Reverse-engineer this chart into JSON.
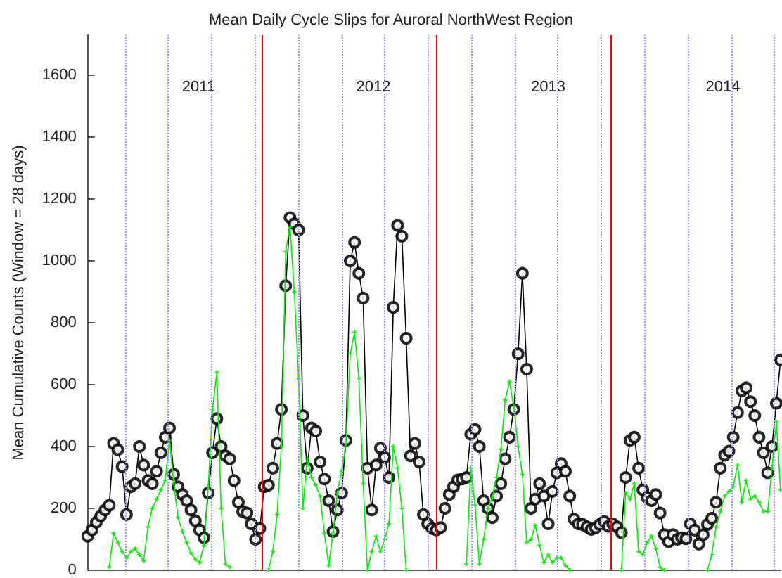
{
  "chart_data": {
    "type": "line",
    "title": "Mean Daily Cycle Slips for Auroral NorthWest Region",
    "ylabel": "Mean Cumulative Counts (Window = 28 days)",
    "ylim": [
      0,
      1730
    ],
    "yticks": [
      0,
      200,
      400,
      600,
      800,
      1000,
      1200,
      1400,
      1600
    ],
    "tick_labels": "y",
    "grid": false,
    "line_style": "solid",
    "categories": [
      null,
      null,
      null,
      null,
      null,
      null,
      null,
      null,
      null,
      null,
      null,
      null,
      null,
      null,
      null,
      null,
      null,
      null,
      null,
      null,
      null,
      null,
      null,
      null,
      null,
      null,
      null,
      null,
      null,
      null,
      null,
      null,
      null,
      null,
      null,
      null,
      null,
      null,
      null,
      null,
      null,
      null,
      null,
      null,
      null,
      null,
      null,
      null,
      null,
      null,
      null,
      null,
      null,
      null,
      null,
      null,
      null,
      null,
      null,
      null,
      null,
      null,
      null,
      null,
      null,
      null,
      null,
      null,
      null,
      null,
      null,
      null,
      null,
      null,
      null,
      null,
      null,
      null,
      null,
      null,
      null,
      null,
      null,
      null,
      null,
      null,
      null,
      null,
      null,
      null,
      null,
      null,
      null,
      null,
      null,
      null,
      null,
      null,
      null,
      null,
      null,
      null,
      null,
      null,
      null,
      null,
      null,
      null,
      null,
      null,
      null,
      null,
      null,
      null,
      null,
      null,
      null,
      null,
      null,
      null,
      null,
      null,
      null,
      null,
      null,
      null,
      null,
      null,
      null,
      null,
      null,
      null,
      null,
      null,
      null,
      null,
      null,
      null,
      null,
      null,
      null,
      null,
      null,
      null,
      null,
      null,
      null,
      null,
      null,
      null,
      null,
      null,
      null,
      null,
      null,
      null,
      null,
      null,
      null,
      null,
      null,
      null
    ],
    "annotations": [
      "2011",
      "2012",
      "2013",
      "2014"
    ],
    "series": [
      {
        "color": "#000000",
        "marker": "circle",
        "values": [
          110,
          130,
          155,
          175,
          195,
          210,
          410,
          390,
          335,
          180,
          270,
          280,
          400,
          340,
          290,
          280,
          320,
          380,
          430,
          460,
          310,
          270,
          245,
          225,
          195,
          160,
          130,
          105,
          250,
          380,
          490,
          400,
          370,
          360,
          290,
          220,
          190,
          185,
          150,
          100,
          135,
          270,
          275,
          330,
          410,
          520,
          920,
          1140,
          1120,
          1100,
          500,
          330,
          460,
          450,
          350,
          295,
          225,
          125,
          195,
          250,
          420,
          1000,
          1060,
          960,
          880,
          330,
          195,
          340,
          395,
          365,
          300,
          850,
          1115,
          1080,
          750,
          370,
          410,
          350,
          180,
          150,
          135,
          130,
          138,
          200,
          245,
          270,
          292,
          295,
          300,
          440,
          455,
          400,
          225,
          200,
          170,
          240,
          280,
          360,
          430,
          520,
          700,
          960,
          650,
          200,
          230,
          280,
          240,
          150,
          255,
          315,
          345,
          320,
          240,
          165,
          150,
          148,
          140,
          132,
          137,
          148,
          158,
          142,
          150,
          140,
          122,
          300,
          420,
          430,
          330,
          260,
          235,
          225,
          245,
          185,
          115,
          92,
          115,
          100,
          105,
          102,
          150,
          130,
          85,
          115,
          148,
          168,
          220,
          330,
          372,
          385,
          430,
          510,
          580,
          590,
          545,
          500,
          430,
          380,
          315,
          400,
          540,
          680
        ]
      },
      {
        "color": "#00ee00",
        "marker": "cross",
        "values": [
          null,
          null,
          null,
          null,
          null,
          10,
          120,
          90,
          60,
          40,
          60,
          70,
          50,
          30,
          140,
          200,
          230,
          260,
          290,
          420,
          280,
          170,
          125,
          90,
          55,
          35,
          25,
          80,
          270,
          520,
          640,
          200,
          20,
          10,
          null,
          null,
          null,
          null,
          null,
          null,
          null,
          null,
          0,
          60,
          180,
          400,
          1030,
          1110,
          900,
          620,
          200,
          360,
          300,
          275,
          240,
          120,
          15,
          120,
          250,
          320,
          410,
          700,
          770,
          620,
          280,
          0,
          60,
          110,
          60,
          100,
          150,
          400,
          330,
          200,
          0,
          null,
          null,
          null,
          null,
          null,
          null,
          null,
          null,
          null,
          null,
          null,
          null,
          null,
          20,
          330,
          210,
          20,
          100,
          200,
          235,
          300,
          390,
          550,
          610,
          530,
          400,
          310,
          90,
          100,
          145,
          80,
          25,
          50,
          25,
          40,
          40,
          15,
          0,
          null,
          null,
          null,
          null,
          null,
          null,
          null,
          null,
          null,
          null,
          null,
          0,
          250,
          230,
          280,
          60,
          50,
          90,
          110,
          70,
          10,
          0,
          null,
          null,
          null,
          null,
          null,
          null,
          null,
          null,
          null,
          0,
          50,
          140,
          190,
          240,
          255,
          270,
          340,
          220,
          290,
          230,
          240,
          220,
          190,
          190,
          330,
          480,
          260
        ]
      }
    ]
  }
}
